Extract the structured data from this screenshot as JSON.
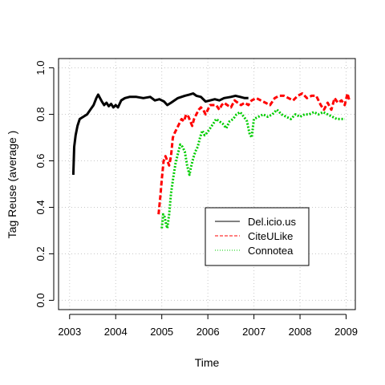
{
  "chart_data": {
    "type": "line",
    "title": "",
    "xlabel": "Time",
    "ylabel": "Tag Reuse (average    )",
    "xlim": [
      2002.76,
      2009.2
    ],
    "ylim": [
      -0.04,
      1.04
    ],
    "xticks": [
      2003,
      2004,
      2005,
      2006,
      2007,
      2008,
      2009
    ],
    "xtick_labels": [
      "2003",
      "2004",
      "2005",
      "2006",
      "2007",
      "2008",
      "2009"
    ],
    "yticks": [
      0.0,
      0.2,
      0.4,
      0.6,
      0.8,
      1.0
    ],
    "ytick_labels": [
      "0.0",
      "0.2",
      "0.4",
      "0.6",
      "0.8",
      "1.0"
    ],
    "grid": true,
    "legend_position": "center-right",
    "series": [
      {
        "name": "Del.icio.us",
        "color": "#000000",
        "dash": "solid",
        "x": [
          2003.08,
          2003.1,
          2003.13,
          2003.17,
          2003.22,
          2003.3,
          2003.38,
          2003.45,
          2003.52,
          2003.58,
          2003.62,
          2003.66,
          2003.7,
          2003.75,
          2003.8,
          2003.85,
          2003.9,
          2003.95,
          2004.0,
          2004.05,
          2004.12,
          2004.2,
          2004.3,
          2004.45,
          2004.6,
          2004.75,
          2004.85,
          2004.95,
          2005.05,
          2005.12,
          2005.2,
          2005.35,
          2005.5,
          2005.6,
          2005.68,
          2005.75,
          2005.85,
          2005.95,
          2006.05,
          2006.15,
          2006.25,
          2006.35,
          2006.5,
          2006.6,
          2006.7,
          2006.8,
          2006.88
        ],
        "y": [
          0.54,
          0.66,
          0.71,
          0.75,
          0.78,
          0.79,
          0.8,
          0.82,
          0.84,
          0.87,
          0.885,
          0.87,
          0.855,
          0.84,
          0.85,
          0.835,
          0.845,
          0.83,
          0.84,
          0.83,
          0.86,
          0.87,
          0.875,
          0.875,
          0.87,
          0.875,
          0.86,
          0.865,
          0.855,
          0.84,
          0.85,
          0.87,
          0.88,
          0.885,
          0.89,
          0.88,
          0.875,
          0.855,
          0.86,
          0.865,
          0.86,
          0.87,
          0.875,
          0.88,
          0.875,
          0.87,
          0.87
        ]
      },
      {
        "name": "CiteULike",
        "color": "#ff0000",
        "dash": "dashed",
        "x": [
          2004.93,
          2004.97,
          2005.0,
          2005.04,
          2005.08,
          2005.12,
          2005.16,
          2005.2,
          2005.24,
          2005.28,
          2005.33,
          2005.38,
          2005.43,
          2005.48,
          2005.53,
          2005.58,
          2005.62,
          2005.66,
          2005.7,
          2005.75,
          2005.8,
          2005.85,
          2005.9,
          2005.95,
          2006.0,
          2006.05,
          2006.1,
          2006.18,
          2006.25,
          2006.3,
          2006.35,
          2006.42,
          2006.5,
          2006.58,
          2006.65,
          2006.72,
          2006.8,
          2006.88,
          2006.95,
          2007.05,
          2007.15,
          2007.25,
          2007.35,
          2007.45,
          2007.55,
          2007.65,
          2007.75,
          2007.85,
          2007.95,
          2008.05,
          2008.15,
          2008.25,
          2008.35,
          2008.45,
          2008.52,
          2008.6,
          2008.68,
          2008.75,
          2008.82,
          2008.9,
          2008.97,
          2009.03,
          2009.07
        ],
        "y": [
          0.37,
          0.45,
          0.52,
          0.6,
          0.62,
          0.6,
          0.58,
          0.62,
          0.7,
          0.72,
          0.74,
          0.76,
          0.78,
          0.77,
          0.8,
          0.79,
          0.77,
          0.75,
          0.78,
          0.8,
          0.82,
          0.83,
          0.82,
          0.8,
          0.82,
          0.84,
          0.84,
          0.84,
          0.82,
          0.84,
          0.85,
          0.84,
          0.83,
          0.86,
          0.85,
          0.84,
          0.85,
          0.84,
          0.86,
          0.87,
          0.86,
          0.85,
          0.84,
          0.87,
          0.88,
          0.88,
          0.87,
          0.86,
          0.88,
          0.89,
          0.87,
          0.88,
          0.88,
          0.84,
          0.82,
          0.85,
          0.82,
          0.87,
          0.85,
          0.86,
          0.84,
          0.89,
          0.86
        ]
      },
      {
        "name": "Connotea",
        "color": "#00cd00",
        "dash": "dotted",
        "x": [
          2005.0,
          2005.03,
          2005.06,
          2005.09,
          2005.12,
          2005.16,
          2005.2,
          2005.25,
          2005.3,
          2005.35,
          2005.4,
          2005.45,
          2005.5,
          2005.55,
          2005.6,
          2005.63,
          2005.68,
          2005.73,
          2005.78,
          2005.83,
          2005.88,
          2005.93,
          2005.98,
          2006.05,
          2006.12,
          2006.18,
          2006.25,
          2006.32,
          2006.4,
          2006.47,
          2006.55,
          2006.62,
          2006.7,
          2006.78,
          2006.85,
          2006.9,
          2006.95,
          2007.0,
          2007.1,
          2007.2,
          2007.3,
          2007.4,
          2007.5,
          2007.6,
          2007.7,
          2007.8,
          2007.9,
          2008.0,
          2008.1,
          2008.2,
          2008.3,
          2008.4,
          2008.5,
          2008.6,
          2008.7,
          2008.8,
          2008.9,
          2008.97
        ],
        "y": [
          0.31,
          0.37,
          0.36,
          0.33,
          0.31,
          0.37,
          0.46,
          0.53,
          0.59,
          0.63,
          0.67,
          0.66,
          0.64,
          0.58,
          0.54,
          0.57,
          0.61,
          0.64,
          0.66,
          0.7,
          0.73,
          0.71,
          0.72,
          0.74,
          0.76,
          0.78,
          0.77,
          0.76,
          0.74,
          0.77,
          0.78,
          0.8,
          0.81,
          0.79,
          0.77,
          0.72,
          0.7,
          0.78,
          0.79,
          0.8,
          0.79,
          0.8,
          0.82,
          0.8,
          0.79,
          0.78,
          0.8,
          0.79,
          0.8,
          0.8,
          0.81,
          0.8,
          0.81,
          0.8,
          0.79,
          0.78,
          0.78,
          0.78
        ]
      }
    ]
  }
}
